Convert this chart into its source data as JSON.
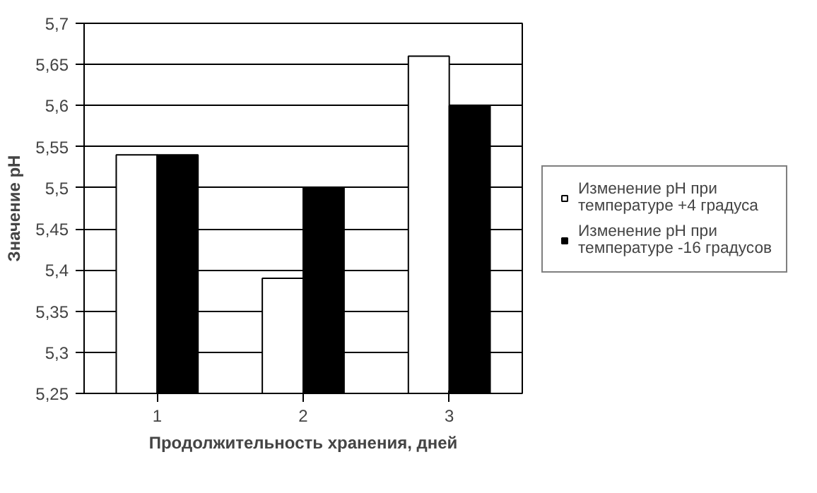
{
  "chart_data": {
    "type": "bar",
    "xlabel": "Продолжительность хранения, дней",
    "ylabel": "Значение pH",
    "categories": [
      "1",
      "2",
      "3"
    ],
    "series": [
      {
        "name": "Изменение pH при температуре +4 градуса",
        "color": "#ffffff",
        "values": [
          5.54,
          5.39,
          5.66
        ]
      },
      {
        "name": "Изменение pH при температуре -16 градусов",
        "color": "#000000",
        "values": [
          5.54,
          5.5,
          5.6
        ]
      }
    ],
    "ylim": [
      5.25,
      5.7
    ],
    "yticks": [
      {
        "value": 5.25,
        "label": "5,25"
      },
      {
        "value": 5.3,
        "label": "5,3"
      },
      {
        "value": 5.35,
        "label": "5,35"
      },
      {
        "value": 5.4,
        "label": "5,4"
      },
      {
        "value": 5.45,
        "label": "5,45"
      },
      {
        "value": 5.5,
        "label": "5,5"
      },
      {
        "value": 5.55,
        "label": "5,55"
      },
      {
        "value": 5.6,
        "label": "5,6"
      },
      {
        "value": 5.65,
        "label": "5,65"
      },
      {
        "value": 5.7,
        "label": "5,7"
      }
    ],
    "grid": "y",
    "legend": "right"
  }
}
